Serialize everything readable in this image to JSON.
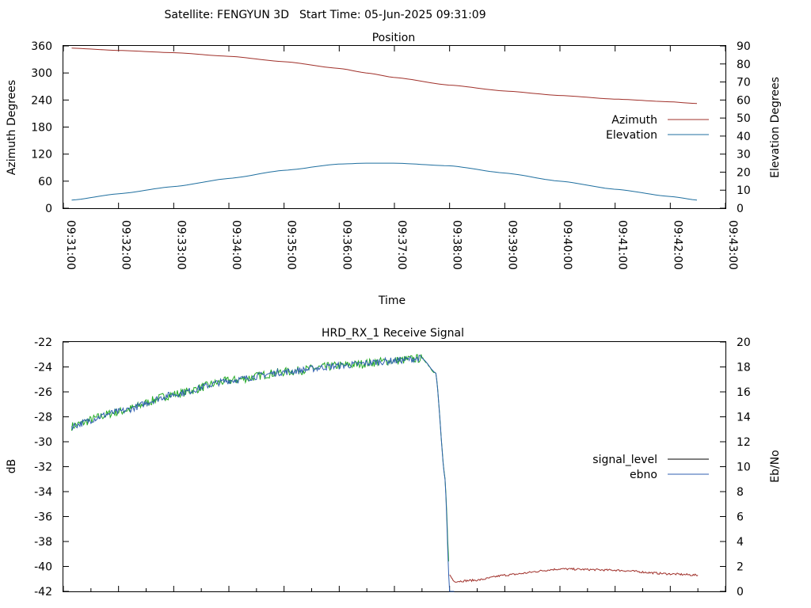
{
  "header": {
    "satellite": "Satellite: FENGYUN 3D",
    "start_time": "Start Time: 05-Jun-2025 09:31:09"
  },
  "chart_data": [
    {
      "type": "line",
      "title": "Position",
      "xlabel": "Time",
      "ylabel": "Azimuth Degrees",
      "y2label": "Elevation Degrees",
      "xlim": [
        "09:31:00",
        "09:43:00"
      ],
      "ylim": [
        0,
        360
      ],
      "y2lim": [
        0,
        90
      ],
      "x_ticks": [
        "09:31:00",
        "09:32:00",
        "09:33:00",
        "09:34:00",
        "09:35:00",
        "09:36:00",
        "09:37:00",
        "09:38:00",
        "09:39:00",
        "09:40:00",
        "09:41:00",
        "09:42:00",
        "09:43:00"
      ],
      "y_ticks": [
        0,
        60,
        120,
        180,
        240,
        300,
        360
      ],
      "y2_ticks": [
        0,
        10,
        20,
        30,
        40,
        50,
        60,
        70,
        80,
        90
      ],
      "legend_position": "right",
      "grid": false,
      "x": [
        "09:31:09",
        "09:32:00",
        "09:33:00",
        "09:34:00",
        "09:35:00",
        "09:36:00",
        "09:36:30",
        "09:37:00",
        "09:38:00",
        "09:39:00",
        "09:40:00",
        "09:41:00",
        "09:42:00",
        "09:42:30"
      ],
      "series": [
        {
          "name": "Azimuth",
          "axis": "left",
          "color": "#a0302a",
          "values": [
            355,
            350,
            345,
            337,
            325,
            310,
            300,
            290,
            273,
            260,
            250,
            242,
            236,
            232
          ]
        },
        {
          "name": "Elevation",
          "axis": "right",
          "color": "#1f6f9f",
          "values": [
            4.5,
            8,
            12,
            16.5,
            21,
            24.5,
            25,
            25,
            23.5,
            19.5,
            15,
            10.5,
            6.5,
            4.5
          ]
        }
      ]
    },
    {
      "type": "line",
      "title": "HRD_RX_1 Receive Signal",
      "ylabel": "dB",
      "y2label": "Eb/No",
      "ylim": [
        -42,
        -22
      ],
      "y2lim": [
        0,
        20
      ],
      "y_ticks": [
        -42,
        -40,
        -38,
        -36,
        -34,
        -32,
        -30,
        -28,
        -26,
        -24,
        -22
      ],
      "y2_ticks": [
        0,
        2,
        4,
        6,
        8,
        10,
        12,
        14,
        16,
        18,
        20
      ],
      "legend_position": "right",
      "grid": false,
      "xlim": [
        "09:31:00",
        "09:43:00"
      ],
      "x": [
        "09:31:00",
        "09:32:00",
        "09:33:00",
        "09:34:00",
        "09:35:00",
        "09:36:00",
        "09:37:00",
        "09:37:30",
        "09:37:45",
        "09:37:55",
        "09:38:00",
        "09:38:05",
        "09:38:30",
        "09:39:00",
        "09:40:00",
        "09:41:00",
        "09:42:00",
        "09:42:30"
      ],
      "series": [
        {
          "name": "signal_level",
          "axis": "left",
          "color": "#000000",
          "values": [
            -28.9,
            -27.6,
            -26.2,
            -25.1,
            -24.4,
            -23.9,
            -23.5,
            -23.3,
            -24.5,
            -33,
            -40.7,
            -41.2,
            -41.1,
            -40.7,
            -40.2,
            -40.3,
            -40.6,
            -40.7
          ],
          "stroke_overrides": [
            {
              "from": "09:38:00",
              "color": "#a0302a"
            }
          ]
        },
        {
          "name": "ebno",
          "axis": "right",
          "color": "#2f5fb0",
          "noise_color": "#22aa22",
          "values": [
            13.1,
            14.4,
            15.8,
            16.9,
            17.6,
            18.1,
            18.5,
            18.7,
            17.5,
            9,
            0,
            0,
            null,
            null,
            null,
            null,
            null,
            null
          ]
        }
      ]
    }
  ]
}
